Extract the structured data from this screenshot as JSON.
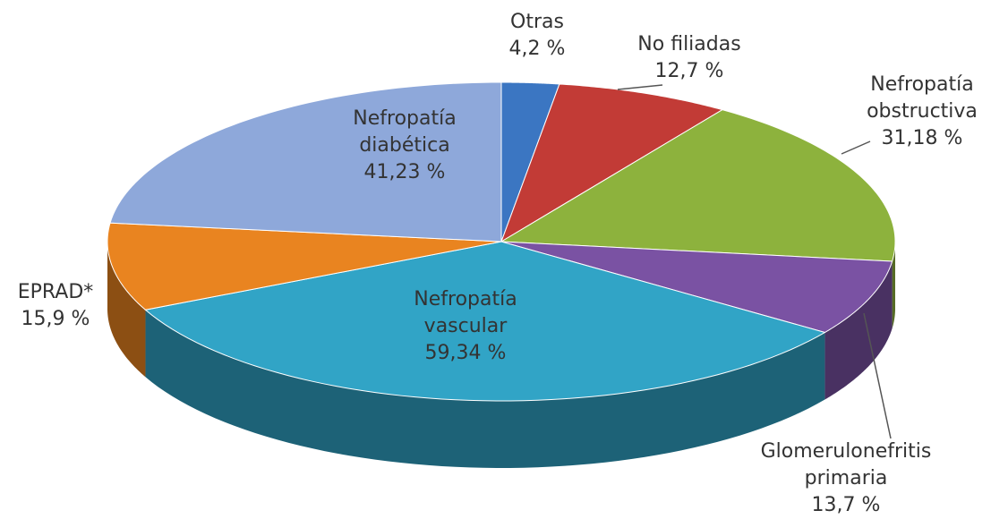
{
  "chart_data": {
    "type": "pie3d",
    "categories": [
      "Otras",
      "No filiadas",
      "Nefropatía obstructiva",
      "Glomerulonefritis primaria",
      "Nefropatía vascular",
      "EPRAD*",
      "Nefropatía diabética"
    ],
    "values": [
      4.2,
      12.7,
      31.18,
      13.7,
      59.34,
      15.9,
      41.23
    ],
    "value_labels": [
      "4,2 %",
      "12,7 %",
      "31,18 %",
      "13,7 %",
      "59,34 %",
      "15,9 %",
      "41,23 %"
    ],
    "colors": [
      "#3b76c2",
      "#c23b36",
      "#8db23d",
      "#7a52a3",
      "#31a4c6",
      "#e98420",
      "#8ea8da"
    ]
  }
}
